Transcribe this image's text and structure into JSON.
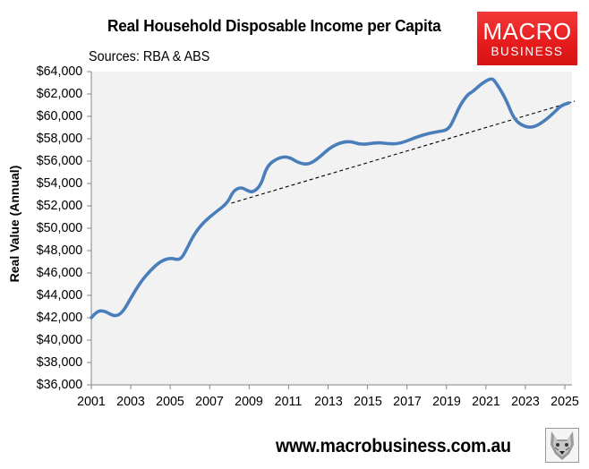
{
  "header": {
    "title": "Real Household Disposable Income per Capita",
    "subtitle": "Sources: RBA & ABS"
  },
  "logo": {
    "line1": "MACRO",
    "line2": "BUSINESS",
    "color": "#e51b1c"
  },
  "footer": {
    "url": "www.macrobusiness.com.au",
    "icon": "fox-icon"
  },
  "axes": {
    "ylabel": "Real Value (Annual)",
    "yticks": [
      "$64,000",
      "$62,000",
      "$60,000",
      "$58,000",
      "$56,000",
      "$54,000",
      "$52,000",
      "$50,000",
      "$48,000",
      "$46,000",
      "$44,000",
      "$42,000",
      "$40,000",
      "$38,000",
      "$36,000"
    ],
    "xticks": [
      "2001",
      "2003",
      "2005",
      "2007",
      "2009",
      "2011",
      "2013",
      "2015",
      "2017",
      "2019",
      "2021",
      "2023",
      "2025"
    ]
  },
  "colors": {
    "series": "#4a7ebb",
    "plot_bg": "#f2f2f2",
    "trend": "#000000"
  },
  "chart_data": {
    "type": "line",
    "title": "Real Household Disposable Income per Capita",
    "subtitle": "Sources: RBA & ABS",
    "xlabel": "",
    "ylabel": "Real Value (Annual)",
    "ylim": [
      36000,
      64000
    ],
    "xlim": [
      2001,
      2025.4
    ],
    "grid": false,
    "legend": "none",
    "series": [
      {
        "name": "Real household disposable income per capita",
        "color": "#4a7ebb",
        "x": [
          2001.0,
          2001.3,
          2001.7,
          2002.2,
          2002.6,
          2003.0,
          2003.5,
          2004.0,
          2004.5,
          2005.0,
          2005.5,
          2005.8,
          2006.2,
          2006.7,
          2007.3,
          2007.9,
          2008.2,
          2008.6,
          2008.9,
          2009.2,
          2009.6,
          2009.9,
          2010.5,
          2011.0,
          2011.5,
          2012.0,
          2012.5,
          2013.2,
          2014.0,
          2014.7,
          2015.5,
          2016.2,
          2016.7,
          2017.5,
          2018.1,
          2018.6,
          2019.1,
          2019.4,
          2019.7,
          2020.1,
          2020.3,
          2020.8,
          2021.3,
          2021.5,
          2022.0,
          2022.4,
          2022.8,
          2023.3,
          2023.8,
          2024.4,
          2024.8,
          2025.2
        ],
        "values": [
          42000,
          42640,
          42600,
          42080,
          42500,
          43760,
          45200,
          46240,
          47040,
          47360,
          47120,
          48000,
          49440,
          50560,
          51440,
          52240,
          53360,
          53680,
          53360,
          53200,
          53840,
          55600,
          56320,
          56400,
          55840,
          55680,
          56240,
          57360,
          57840,
          57440,
          57680,
          57520,
          57600,
          58160,
          58480,
          58640,
          58800,
          59840,
          61040,
          62000,
          62160,
          62960,
          63440,
          63040,
          61600,
          59840,
          59200,
          58960,
          59360,
          60240,
          60960,
          61200
        ]
      },
      {
        "name": "Trend",
        "style": "dashed",
        "color": "#000000",
        "x": [
          2008.1,
          2025.5
        ],
        "values": [
          52240,
          61360
        ]
      }
    ]
  }
}
